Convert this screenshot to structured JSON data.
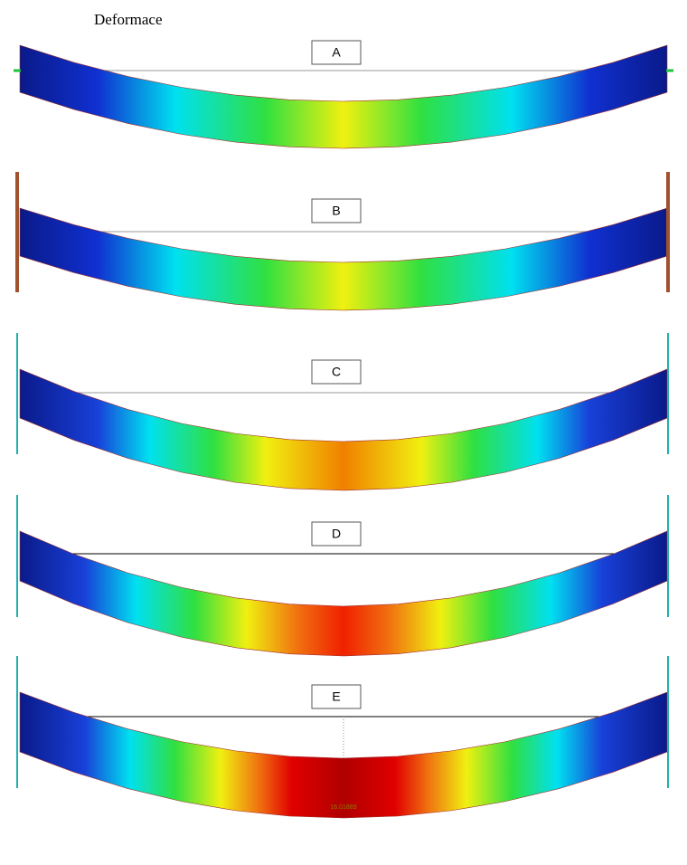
{
  "title": "Deformace",
  "panels": [
    {
      "label": "A"
    },
    {
      "label": "B"
    },
    {
      "label": "C"
    },
    {
      "label": "D"
    },
    {
      "label": "E"
    }
  ],
  "max_value_label": "16.01889"
}
